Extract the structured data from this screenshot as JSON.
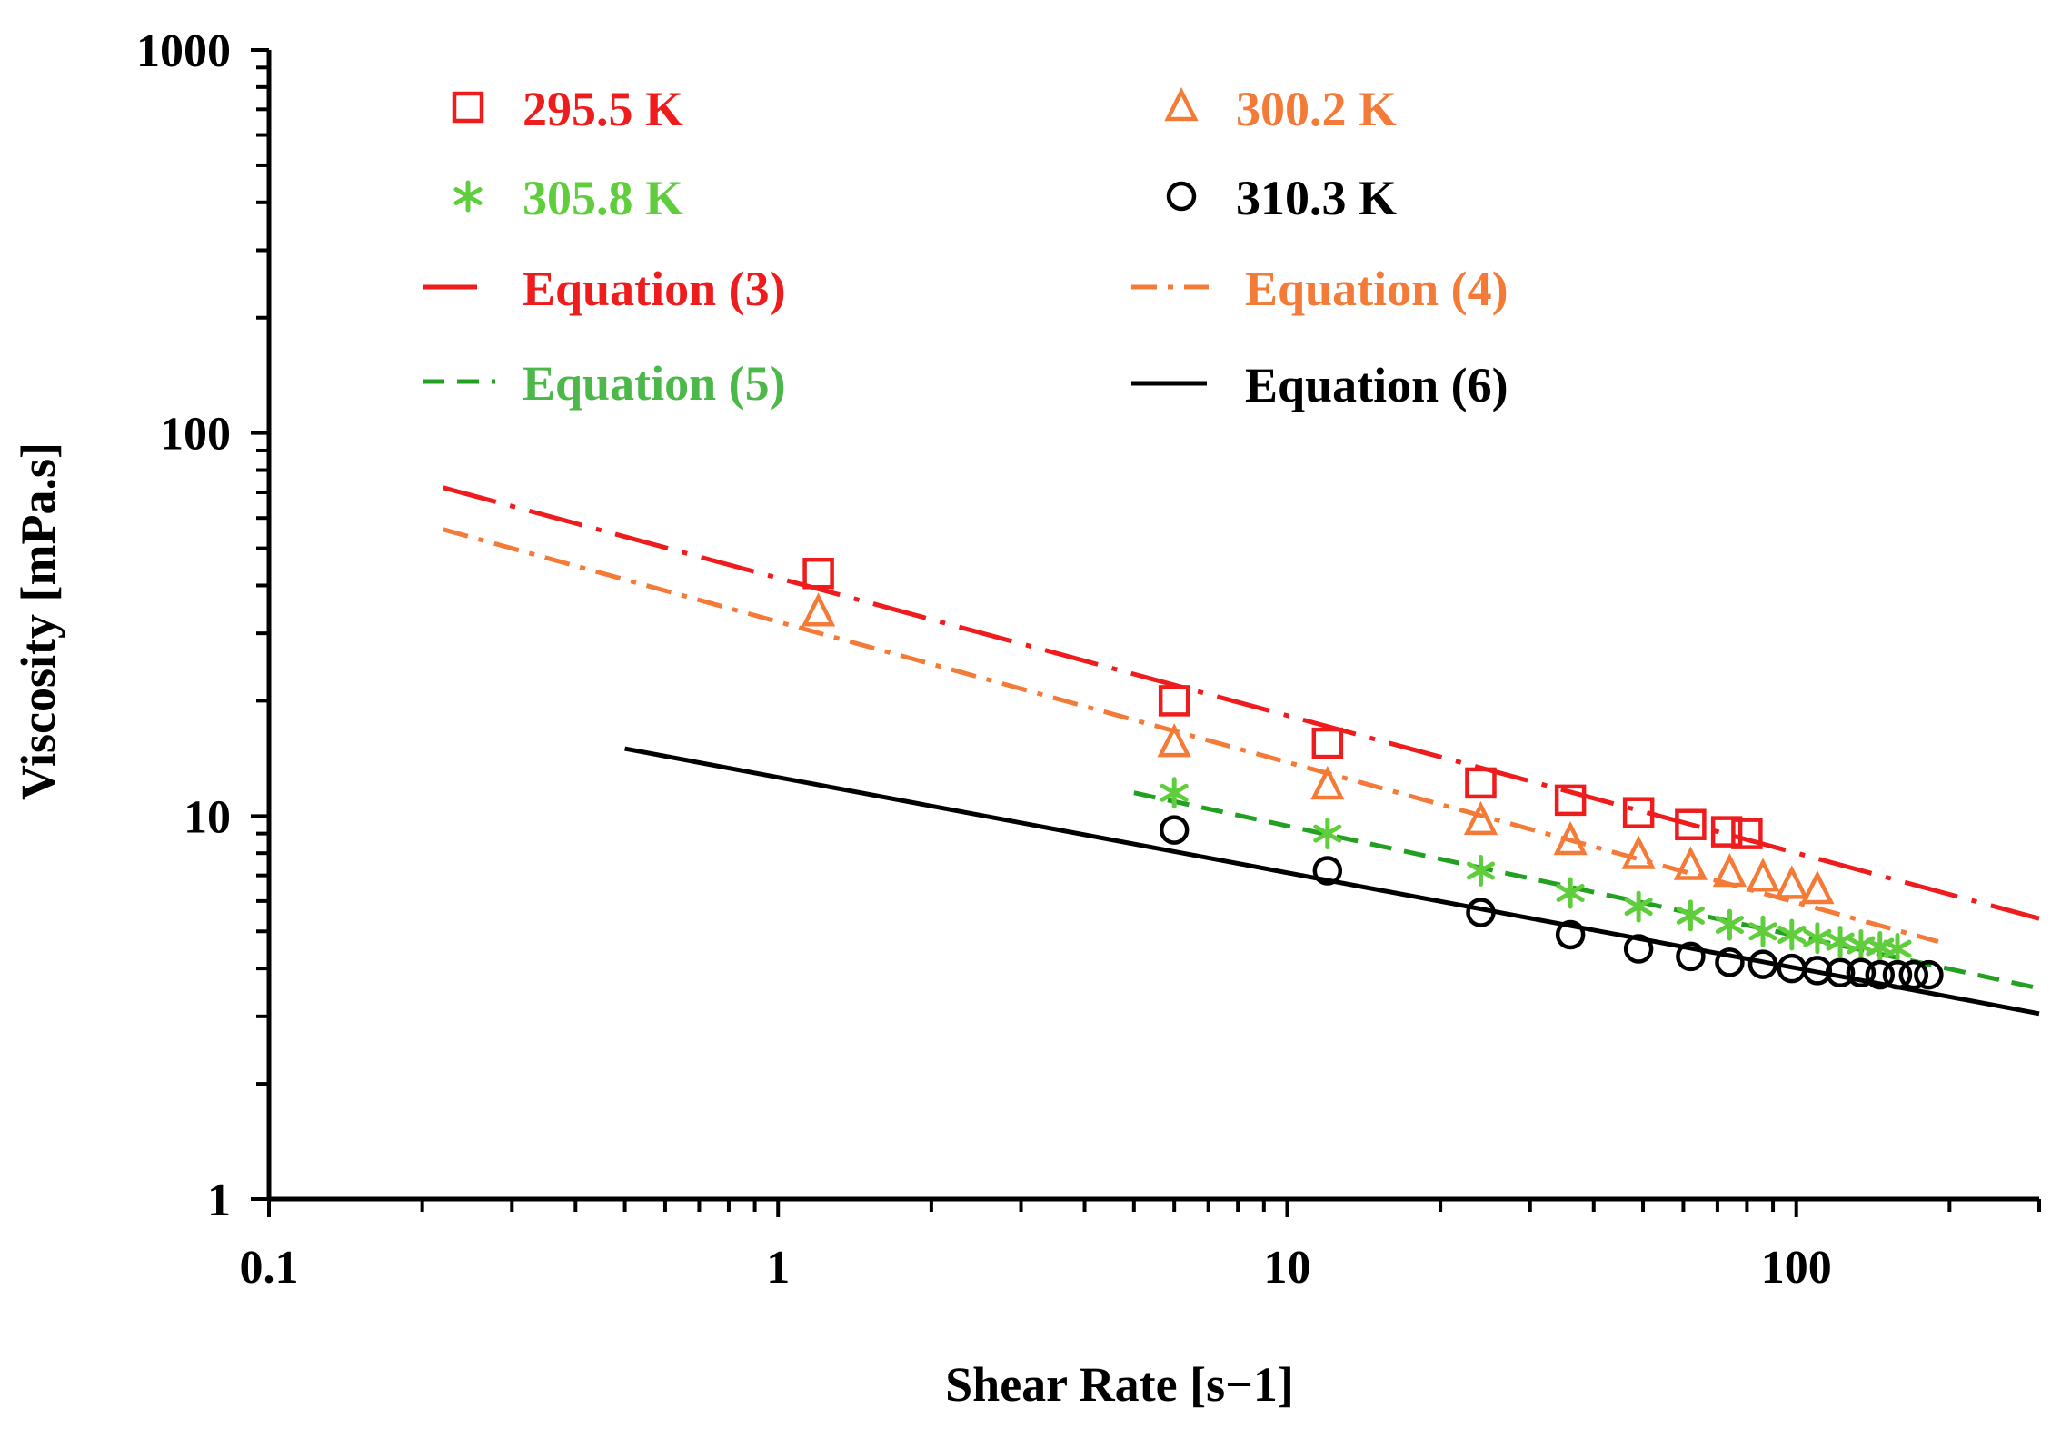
{
  "chart_data": {
    "type": "scatter",
    "title": "",
    "xlabel": "Shear Rate [s−1]",
    "ylabel": "Viscosity [mPa.s]",
    "xscale": "log",
    "yscale": "log",
    "xlim": [
      0.1,
      300
    ],
    "ylim": [
      1,
      1000
    ],
    "x_tick_labels": [
      "0.1",
      "1",
      "10",
      "100"
    ],
    "y_tick_labels": [
      "1",
      "10",
      "100",
      "1000"
    ],
    "series": [
      {
        "name": "295.5 K",
        "marker": "square",
        "color": "#ee1c1c",
        "points": [
          [
            1.2,
            43
          ],
          [
            6,
            20
          ],
          [
            12,
            15.5
          ],
          [
            24,
            12.2
          ],
          [
            36,
            11
          ],
          [
            49,
            10.2
          ],
          [
            62,
            9.5
          ],
          [
            73,
            9.1
          ],
          [
            80,
            9.0
          ]
        ]
      },
      {
        "name": "300.2 K",
        "marker": "triangle",
        "color": "#f47a37",
        "points": [
          [
            1.2,
            34
          ],
          [
            6,
            15.5
          ],
          [
            12,
            12
          ],
          [
            24,
            9.7
          ],
          [
            36,
            8.6
          ],
          [
            49,
            7.9
          ],
          [
            62,
            7.4
          ],
          [
            74,
            7.1
          ],
          [
            86,
            6.9
          ],
          [
            98,
            6.6
          ],
          [
            110,
            6.4
          ]
        ]
      },
      {
        "name": "305.8 K",
        "marker": "asterisk",
        "color": "#5fcd3c",
        "points": [
          [
            6,
            11.5
          ],
          [
            12,
            9.0
          ],
          [
            24,
            7.2
          ],
          [
            36,
            6.3
          ],
          [
            49,
            5.8
          ],
          [
            62,
            5.5
          ],
          [
            74,
            5.2
          ],
          [
            86,
            5.0
          ],
          [
            98,
            4.9
          ],
          [
            110,
            4.8
          ],
          [
            122,
            4.7
          ],
          [
            134,
            4.6
          ],
          [
            146,
            4.55
          ],
          [
            158,
            4.5
          ]
        ]
      },
      {
        "name": "310.3 K",
        "marker": "circle",
        "color": "#000000",
        "points": [
          [
            6,
            9.2
          ],
          [
            12,
            7.2
          ],
          [
            24,
            5.6
          ],
          [
            36,
            4.9
          ],
          [
            49,
            4.5
          ],
          [
            62,
            4.3
          ],
          [
            74,
            4.15
          ],
          [
            86,
            4.1
          ],
          [
            98,
            4.0
          ],
          [
            110,
            3.95
          ],
          [
            122,
            3.9
          ],
          [
            134,
            3.9
          ],
          [
            146,
            3.85
          ],
          [
            158,
            3.85
          ],
          [
            170,
            3.85
          ],
          [
            182,
            3.85
          ]
        ]
      }
    ],
    "fits": [
      {
        "name": "Equation (3)",
        "style": "longdash-dot",
        "color": "#ee1c1c",
        "x_range": [
          0.22,
          300
        ],
        "y_range": [
          72,
          5.4
        ]
      },
      {
        "name": "Equation (4)",
        "style": "dash-dot",
        "color": "#f47a37",
        "x_range": [
          0.22,
          190
        ],
        "y_range": [
          56,
          4.7
        ]
      },
      {
        "name": "Equation (5)",
        "style": "dashed",
        "color": "#22a022",
        "x_range": [
          5,
          300
        ],
        "y_range": [
          11.5,
          3.55
        ]
      },
      {
        "name": "Equation (6)",
        "style": "solid",
        "color": "#000000",
        "x_range": [
          0.5,
          300
        ],
        "y_range": [
          15,
          3.05
        ]
      }
    ],
    "legend": {
      "placement": "top",
      "items": [
        {
          "label": "295.5 K",
          "symbol": "square",
          "color": "#ee1c1c"
        },
        {
          "label": "300.2 K",
          "symbol": "triangle",
          "color": "#f47a37"
        },
        {
          "label": "305.8 K",
          "symbol": "asterisk",
          "color": "#5fcd3c"
        },
        {
          "label": "310.3 K",
          "symbol": "circle",
          "color": "#000000"
        },
        {
          "label": "Equation (3)",
          "symbol": "line",
          "color": "#ee1c1c",
          "text_color": "#ee1c1c"
        },
        {
          "label": "Equation (4)",
          "symbol": "line",
          "color": "#f47a37",
          "text_color": "#f47a37"
        },
        {
          "label": "Equation (5)",
          "symbol": "line",
          "color": "#22a022",
          "text_color": "#4cb84a"
        },
        {
          "label": "Equation (6)",
          "symbol": "line",
          "color": "#000000",
          "text_color": "#000000"
        }
      ]
    }
  }
}
